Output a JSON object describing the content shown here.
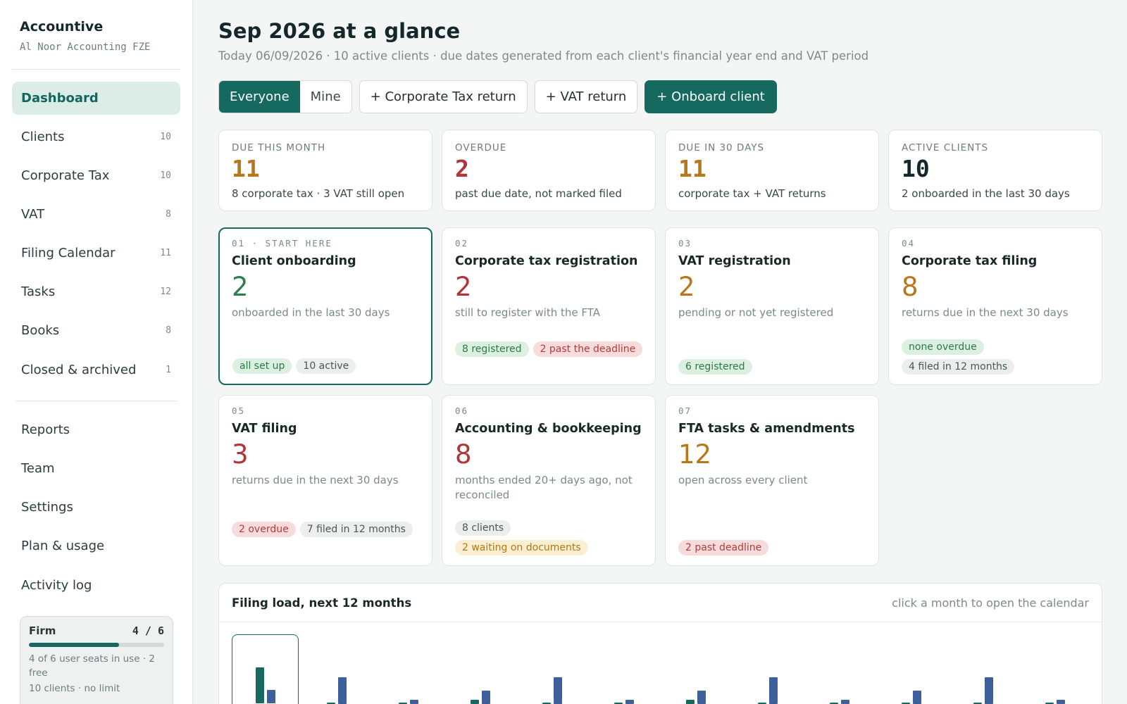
{
  "sidebar": {
    "brand": "Accountive",
    "firm": "Al Noor Accounting FZE",
    "nav": [
      {
        "label": "Dashboard",
        "count": ""
      },
      {
        "label": "Clients",
        "count": "10"
      },
      {
        "label": "Corporate Tax",
        "count": "10"
      },
      {
        "label": "VAT",
        "count": "8"
      },
      {
        "label": "Filing Calendar",
        "count": "11"
      },
      {
        "label": "Tasks",
        "count": "12"
      },
      {
        "label": "Books",
        "count": "8"
      },
      {
        "label": "Closed & archived",
        "count": "1"
      }
    ],
    "secondary": [
      {
        "label": "Reports"
      },
      {
        "label": "Team"
      },
      {
        "label": "Settings"
      },
      {
        "label": "Plan & usage"
      },
      {
        "label": "Activity log"
      }
    ],
    "plan": {
      "title": "Firm",
      "count": "4 / 6",
      "progress": 0.667,
      "seats_text": "4 of 6 user seats in use · 2 free",
      "clients_text": "10 clients · no limit"
    }
  },
  "header": {
    "title": "Sep 2026 at a glance",
    "subtitle": "Today 06/09/2026 · 10 active clients · due dates generated from each client's financial year end and VAT period"
  },
  "toolbar": {
    "filter_everyone": "Everyone",
    "filter_mine": "Mine",
    "ct_return": "+ Corporate Tax return",
    "vat_return": "+ VAT return",
    "onboard": "+ Onboard client"
  },
  "stats": [
    {
      "label": "DUE THIS MONTH",
      "value": "11",
      "desc": "8 corporate tax · 3 VAT still open",
      "color": "#b8771a"
    },
    {
      "label": "OVERDUE",
      "value": "2",
      "desc": "past due date, not marked filed",
      "color": "#b03438"
    },
    {
      "label": "DUE IN 30 DAYS",
      "value": "11",
      "desc": "corporate tax + VAT returns",
      "color": "#b8771a"
    },
    {
      "label": "ACTIVE CLIENTS",
      "value": "10",
      "desc": "2 onboarded in the last 30 days",
      "color": "#14272a"
    }
  ],
  "steps": [
    {
      "tag": "01 · START HERE",
      "title": "Client onboarding",
      "value": "2",
      "desc": "onboarded in the last 30 days",
      "pills": [
        "all set up",
        "10 active"
      ]
    },
    {
      "tag": "02",
      "title": "Corporate tax registration",
      "value": "2",
      "desc": "still to register with the FTA",
      "pills": [
        "8 registered",
        "2 past the deadline"
      ]
    },
    {
      "tag": "03",
      "title": "VAT registration",
      "value": "2",
      "desc": "pending or not yet registered",
      "pills": [
        "6 registered"
      ]
    },
    {
      "tag": "04",
      "title": "Corporate tax filing",
      "value": "8",
      "desc": "returns due in the next 30 days",
      "pills": [
        "none overdue",
        "4 filed in 12 months"
      ]
    },
    {
      "tag": "05",
      "title": "VAT filing",
      "value": "3",
      "desc": "returns due in the next 30 days",
      "pills": [
        "2 overdue",
        "7 filed in 12 months"
      ]
    },
    {
      "tag": "06",
      "title": "Accounting & bookkeeping",
      "value": "8",
      "desc": "months ended 20+ days ago, not reconciled",
      "pills": [
        "8 clients",
        "2 waiting on documents"
      ]
    },
    {
      "tag": "07",
      "title": "FTA tasks & amendments",
      "value": "12",
      "desc": "open across every client",
      "pills": [
        "2 past deadline"
      ]
    }
  ],
  "load": {
    "title": "Filing load, next 12 months",
    "hint": "click a month to open the calendar"
  },
  "chart_data": {
    "type": "bar",
    "categories": [
      "",
      "",
      "",
      "",
      "",
      "",
      "",
      "",
      "",
      "",
      "",
      ""
    ],
    "totals": [
      "11",
      "6",
      "1",
      "4",
      "6",
      "1",
      "4",
      "6",
      "1",
      "3",
      "6",
      "1"
    ],
    "series": [
      {
        "values": [
          8,
          0,
          0,
          1,
          0,
          0,
          1,
          0,
          0,
          0,
          0,
          0
        ]
      },
      {
        "values": [
          3,
          6,
          1,
          3,
          6,
          1,
          3,
          6,
          1,
          3,
          6,
          1
        ]
      }
    ],
    "colors": [
      "#15695f",
      "#3d5f9a"
    ]
  }
}
